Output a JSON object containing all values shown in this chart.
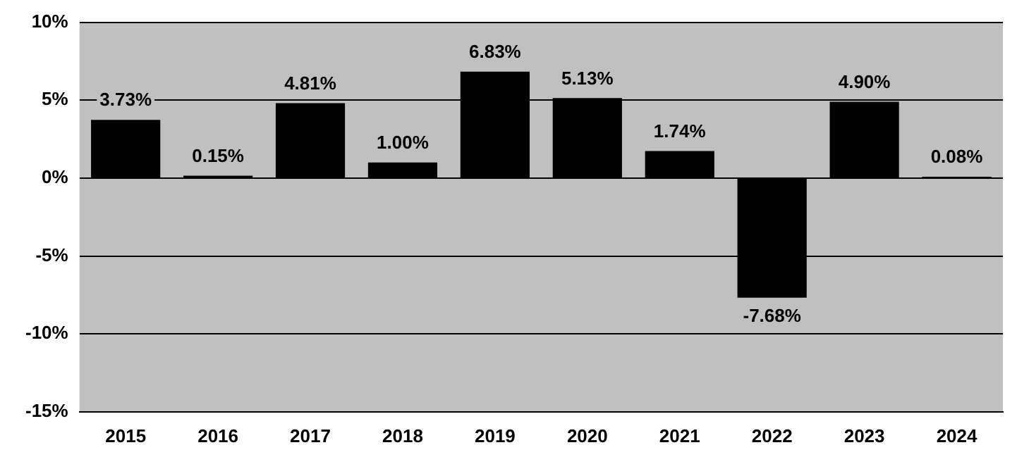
{
  "chart_data": {
    "type": "bar",
    "categories": [
      "2015",
      "2016",
      "2017",
      "2018",
      "2019",
      "2020",
      "2021",
      "2022",
      "2023",
      "2024"
    ],
    "values": [
      3.73,
      0.15,
      4.81,
      1.0,
      6.83,
      5.13,
      1.74,
      -7.68,
      4.9,
      0.08
    ],
    "value_labels": [
      "3.73%",
      "0.15%",
      "4.81%",
      "1.00%",
      "6.83%",
      "5.13%",
      "1.74%",
      "-7.68%",
      "4.90%",
      "0.08%"
    ],
    "color": "#000000",
    "ylim": [
      -15,
      10
    ],
    "yticks": [
      {
        "value": -15,
        "label": "-15%"
      },
      {
        "value": -10,
        "label": "-10%"
      },
      {
        "value": -5,
        "label": "-5%"
      },
      {
        "value": 0,
        "label": "0%"
      },
      {
        "value": 5,
        "label": "5%"
      },
      {
        "value": 10,
        "label": "10%"
      }
    ],
    "grid": "y",
    "legend": false
  }
}
